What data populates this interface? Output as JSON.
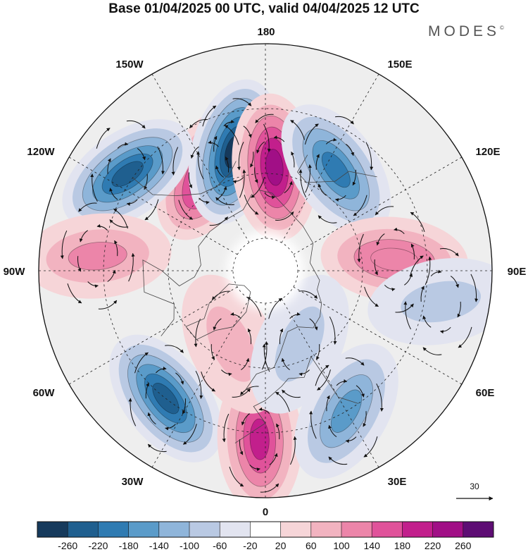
{
  "title": "Base 01/04/2025 00 UTC, valid 04/04/2025 12 UTC",
  "brand": "MODES",
  "brand_mark": "©",
  "longitude_labels": {
    "lon_180": "180",
    "lon_150w": "150W",
    "lon_150e": "150E",
    "lon_120w": "120W",
    "lon_120e": "120E",
    "lon_90w": "90W",
    "lon_90e": "90E",
    "lon_60w": "60W",
    "lon_60e": "60E",
    "lon_30w": "30W",
    "lon_30e": "30E",
    "lon_0": "0"
  },
  "wind_reference": {
    "value": "30"
  },
  "colorbar": {
    "ticks": [
      "-260",
      "-220",
      "-180",
      "-140",
      "-100",
      "-60",
      "-20",
      "20",
      "60",
      "100",
      "140",
      "180",
      "220",
      "260"
    ],
    "colors": [
      "#163a5c",
      "#1f5f8f",
      "#2f7bb2",
      "#5a9bc9",
      "#8fb5da",
      "#b9c9e3",
      "#e2e4f0",
      "#ffffff",
      "#f6d5d8",
      "#f2b3c0",
      "#ec85a9",
      "#e0529a",
      "#c21f8c",
      "#a10f86",
      "#5e0d74"
    ]
  },
  "anomaly_centers": [
    {
      "type": "positive",
      "level": 220,
      "lon": -150,
      "lat": 55
    },
    {
      "type": "negative",
      "level": -260,
      "lon": -165,
      "lat": 52
    },
    {
      "type": "positive",
      "level": 240,
      "lon": 175,
      "lat": 58
    },
    {
      "type": "negative",
      "level": -180,
      "lon": 145,
      "lat": 52
    },
    {
      "type": "negative",
      "level": -240,
      "lon": -125,
      "lat": 38
    },
    {
      "type": "positive",
      "level": 120,
      "lon": -95,
      "lat": 38
    },
    {
      "type": "positive",
      "level": 140,
      "lon": 95,
      "lat": 50
    },
    {
      "type": "negative",
      "level": -60,
      "lon": 80,
      "lat": 35
    },
    {
      "type": "negative",
      "level": -220,
      "lon": -38,
      "lat": 40
    },
    {
      "type": "positive",
      "level": 200,
      "lon": -2,
      "lat": 38
    },
    {
      "type": "negative",
      "level": -160,
      "lon": 30,
      "lat": 40
    },
    {
      "type": "positive",
      "level": 80,
      "lon": -25,
      "lat": 65
    },
    {
      "type": "negative",
      "level": -80,
      "lon": 25,
      "lat": 65
    }
  ]
}
